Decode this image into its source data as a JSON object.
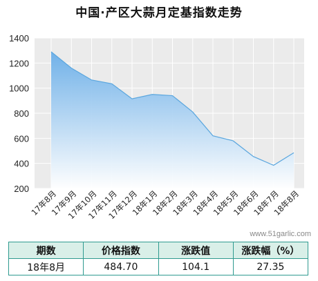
{
  "page": {
    "title": "中国·产区大蒜月定基指数走势",
    "watermark": "www.51garlic.com"
  },
  "chart_data": {
    "type": "area",
    "title": "中国·产区大蒜月定基指数走势",
    "categories": [
      "17年8月",
      "17年9月",
      "17年10月",
      "17年11月",
      "17年12月",
      "18年1月",
      "18年2月",
      "18年3月",
      "18年4月",
      "18年5月",
      "18年6月",
      "18年7月",
      "18年8月"
    ],
    "series": [
      {
        "values": [
          1290,
          1160,
          1065,
          1035,
          915,
          950,
          940,
          810,
          620,
          580,
          455,
          385,
          485
        ]
      }
    ],
    "ylim": [
      200,
      1400
    ],
    "yticks": [
      200,
      400,
      600,
      800,
      1000,
      1200,
      1400
    ],
    "grid": true,
    "colors": {
      "line": "#5aa6de",
      "fill_top": "#6aaee8",
      "fill_bottom": "#ffffff",
      "grid": "#dddddd",
      "plot_bg": "#ebebeb"
    }
  },
  "summary": {
    "headers": [
      "期数",
      "价格指数",
      "涨跌值",
      "涨跌幅（%）"
    ],
    "row": [
      "18年8月",
      "484.70",
      "104.1",
      "27.35"
    ],
    "colors": {
      "border": "#2e9a8f",
      "header_bg": "#d9efe8"
    }
  }
}
